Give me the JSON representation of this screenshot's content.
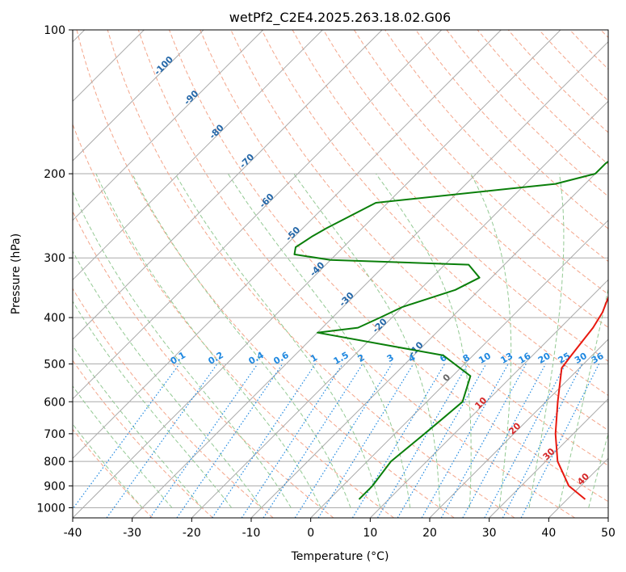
{
  "chart_data": {
    "type": "line",
    "title": "wetPf2_C2E4.2025.263.18.02.G06",
    "xlabel": "Temperature (°C)",
    "ylabel": "Pressure (hPa)",
    "xlim": [
      -40,
      50
    ],
    "ylim": [
      1050,
      100
    ],
    "y_scale": "log",
    "skew": "45deg",
    "grid": true,
    "x_ticks": [
      "-40",
      "-30",
      "-20",
      "-10",
      "0",
      "10",
      "20",
      "30",
      "40",
      "50"
    ],
    "y_ticks": [
      "100",
      "200",
      "300",
      "400",
      "500",
      "600",
      "700",
      "800",
      "900",
      "1000"
    ],
    "colors": {
      "temperature": "#e8180f",
      "dewpoint": "#0a7f0a",
      "mixing_ratio": "#1f88e0",
      "isotherm_label": "#2467a8",
      "dry_adiabat": "#f4a58a",
      "moist_adiabat": "#93c993",
      "grid": "#aaaaaa"
    },
    "isotherm_labels_upper": [
      "-100",
      "-90",
      "-80",
      "-70",
      "-60",
      "-50",
      "-40",
      "-30",
      "-20",
      "-10"
    ],
    "isotherm_labels_lower": [
      "0",
      "10",
      "20",
      "30",
      "40"
    ],
    "mixing_ratio_labels": [
      "0.1",
      "0.2",
      "0.4",
      "0.6",
      "1",
      "1.5",
      "2",
      "3",
      "4",
      "6",
      "8",
      "10",
      "13",
      "16",
      "20",
      "25",
      "30",
      "36"
    ],
    "series": [
      {
        "name": "Temperature",
        "points": [
          [
            43,
            960
          ],
          [
            38,
            900
          ],
          [
            32,
            800
          ],
          [
            27,
            700
          ],
          [
            22,
            600
          ],
          [
            17,
            510
          ],
          [
            16.5,
            480
          ],
          [
            16,
            450
          ],
          [
            15.5,
            420
          ],
          [
            14.5,
            390
          ],
          [
            12.5,
            355
          ],
          [
            10.5,
            325
          ],
          [
            10,
            305
          ],
          [
            10,
            295
          ],
          [
            9,
            280
          ],
          [
            6,
            250
          ],
          [
            3,
            220
          ],
          [
            1,
            200
          ],
          [
            0,
            180
          ],
          [
            -1.5,
            160
          ],
          [
            -2,
            140
          ],
          [
            -1.5,
            125
          ],
          [
            0,
            115
          ],
          [
            2,
            105
          ],
          [
            3,
            100
          ]
        ]
      },
      {
        "name": "Dewpoint",
        "points": [
          [
            5,
            960
          ],
          [
            5,
            930
          ],
          [
            5,
            900
          ],
          [
            4,
            800
          ],
          [
            5,
            700
          ],
          [
            5.5,
            650
          ],
          [
            6,
            600
          ],
          [
            3,
            530
          ],
          [
            -5,
            480
          ],
          [
            -30,
            430
          ],
          [
            -24,
            420
          ],
          [
            -22,
            400
          ],
          [
            -20,
            380
          ],
          [
            -14,
            350
          ],
          [
            -12,
            330
          ],
          [
            -16,
            310
          ],
          [
            -40,
            303
          ],
          [
            -47,
            295
          ],
          [
            -48,
            285
          ],
          [
            -47,
            270
          ],
          [
            -46,
            260
          ],
          [
            -42,
            230
          ],
          [
            -15,
            210
          ],
          [
            -10,
            200
          ],
          [
            -10,
            190
          ],
          [
            -9,
            180
          ],
          [
            -8,
            160
          ],
          [
            -8.5,
            140
          ],
          [
            -6,
            125
          ],
          [
            -4,
            115
          ],
          [
            -3,
            105
          ],
          [
            -3,
            100
          ]
        ]
      }
    ]
  }
}
